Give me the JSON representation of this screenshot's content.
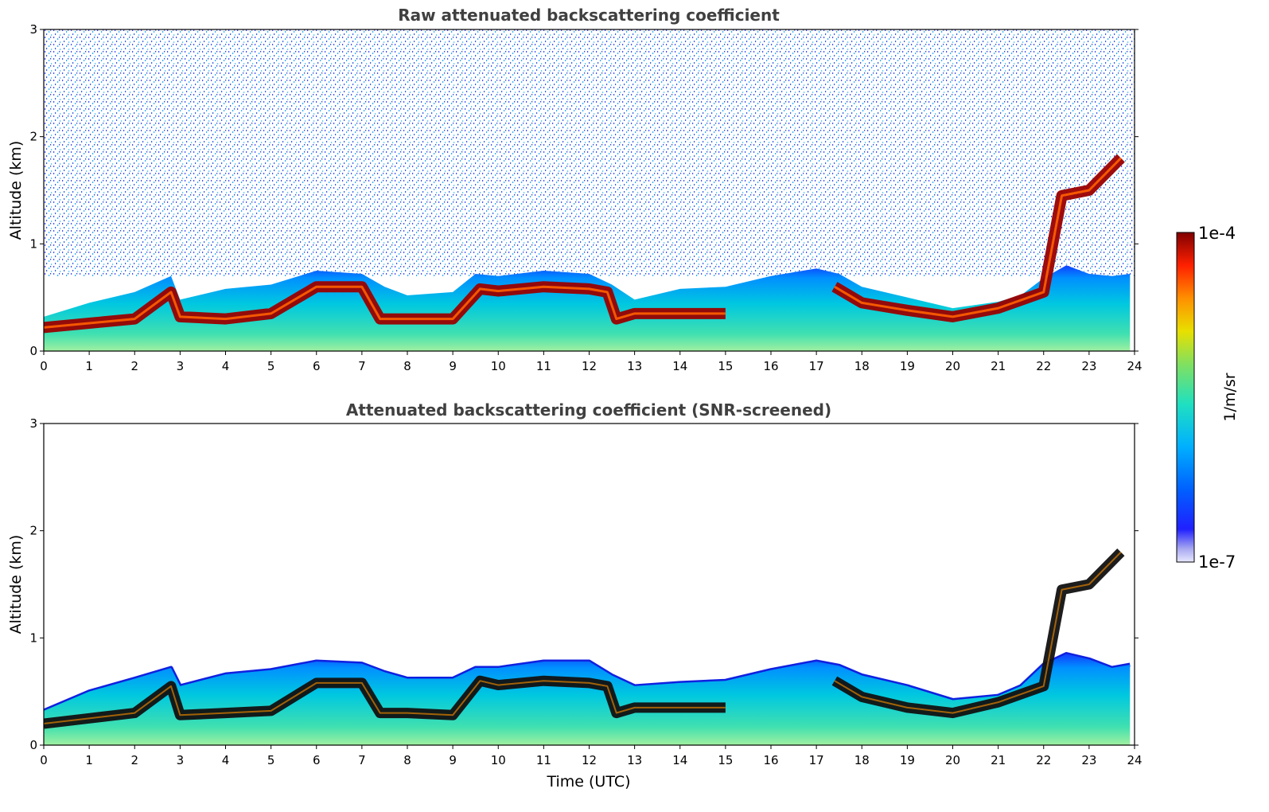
{
  "chart_data": [
    {
      "type": "heatmap",
      "title": "Raw attenuated backscattering coefficient",
      "xlabel": "",
      "ylabel": "Altitude (km)",
      "xlim": [
        0,
        24
      ],
      "ylim": [
        0,
        3
      ],
      "xticks": [
        "0",
        "1",
        "2",
        "3",
        "4",
        "5",
        "6",
        "7",
        "8",
        "9",
        "10",
        "11",
        "12",
        "13",
        "14",
        "15",
        "16",
        "17",
        "18",
        "19",
        "20",
        "21",
        "22",
        "23",
        "24"
      ],
      "yticks": [
        "0",
        "1",
        "2",
        "3"
      ],
      "background_noise": true,
      "layer_top_km": {
        "time": [
          0,
          1,
          2,
          2.8,
          3,
          4,
          5,
          6,
          7,
          7.5,
          8,
          9,
          9.5,
          10,
          11,
          12,
          12.5,
          13,
          14,
          15,
          16,
          17,
          17.5,
          18,
          19,
          20,
          21,
          21.5,
          22,
          22.5,
          23,
          23.5,
          23.9
        ],
        "altitude": [
          0.32,
          0.45,
          0.55,
          0.7,
          0.48,
          0.58,
          0.62,
          0.75,
          0.72,
          0.6,
          0.52,
          0.55,
          0.72,
          0.7,
          0.75,
          0.72,
          0.62,
          0.48,
          0.58,
          0.6,
          0.7,
          0.77,
          0.72,
          0.6,
          0.5,
          0.4,
          0.46,
          0.52,
          0.68,
          0.8,
          0.72,
          0.7,
          0.72
        ]
      },
      "peak_layer_km": {
        "time": [
          0,
          1,
          2,
          2.8,
          3,
          4,
          5,
          6,
          7,
          7.4,
          8,
          9,
          9.6,
          10,
          11,
          12,
          12.4,
          12.6,
          13,
          14,
          15,
          15.1,
          17.4,
          18,
          19,
          20,
          21,
          22,
          22.4,
          23,
          23.7
        ],
        "altitude": [
          0.22,
          0.26,
          0.3,
          0.55,
          0.32,
          0.3,
          0.35,
          0.6,
          0.6,
          0.3,
          0.3,
          0.3,
          0.58,
          0.56,
          0.6,
          0.58,
          0.55,
          0.3,
          0.35,
          0.35,
          0.35,
          null,
          0.6,
          0.45,
          0.38,
          0.32,
          0.4,
          0.55,
          1.45,
          1.5,
          1.8
        ]
      },
      "colorbar": {
        "min_label": "1e-7",
        "max_label": "1e-4",
        "unit": "1/m/sr",
        "colormap": "jet"
      }
    },
    {
      "type": "heatmap",
      "title": "Attenuated backscattering coefficient (SNR-screened)",
      "xlabel": "Time (UTC)",
      "ylabel": "Altitude (km)",
      "xlim": [
        0,
        24
      ],
      "ylim": [
        0,
        3
      ],
      "xticks": [
        "0",
        "1",
        "2",
        "3",
        "4",
        "5",
        "6",
        "7",
        "8",
        "9",
        "10",
        "11",
        "12",
        "13",
        "14",
        "15",
        "16",
        "17",
        "18",
        "19",
        "20",
        "21",
        "22",
        "23",
        "24"
      ],
      "yticks": [
        "0",
        "1",
        "2",
        "3"
      ],
      "background_noise": false,
      "layer_top_km": {
        "time": [
          0,
          1,
          2,
          2.8,
          3,
          4,
          5,
          6,
          7,
          7.5,
          8,
          9,
          9.5,
          10,
          11,
          12,
          12.5,
          13,
          14,
          15,
          16,
          17,
          17.5,
          18,
          19,
          20,
          21,
          21.5,
          22,
          22.5,
          23,
          23.5,
          23.9
        ],
        "altitude": [
          0.32,
          0.5,
          0.62,
          0.72,
          0.55,
          0.66,
          0.7,
          0.78,
          0.76,
          0.68,
          0.62,
          0.62,
          0.72,
          0.72,
          0.78,
          0.78,
          0.65,
          0.55,
          0.58,
          0.6,
          0.7,
          0.78,
          0.74,
          0.65,
          0.55,
          0.42,
          0.46,
          0.55,
          0.75,
          0.85,
          0.8,
          0.72,
          0.75
        ]
      },
      "peak_layer_km": {
        "time": [
          0,
          1,
          2,
          2.8,
          3,
          4,
          5,
          6,
          7,
          7.4,
          8,
          9,
          9.6,
          10,
          11,
          12,
          12.4,
          12.6,
          13,
          14,
          15,
          15.1,
          17.4,
          18,
          19,
          20,
          21,
          22,
          22.4,
          23,
          23.7
        ],
        "altitude": [
          0.2,
          0.25,
          0.3,
          0.55,
          0.28,
          0.3,
          0.32,
          0.58,
          0.58,
          0.3,
          0.3,
          0.28,
          0.6,
          0.56,
          0.6,
          0.58,
          0.55,
          0.3,
          0.35,
          0.35,
          0.35,
          null,
          0.6,
          0.45,
          0.35,
          0.3,
          0.4,
          0.55,
          1.45,
          1.5,
          1.8
        ]
      },
      "colorbar": {
        "min_label": "1e-7",
        "max_label": "1e-4",
        "unit": "1/m/sr",
        "colormap": "jet"
      }
    }
  ]
}
